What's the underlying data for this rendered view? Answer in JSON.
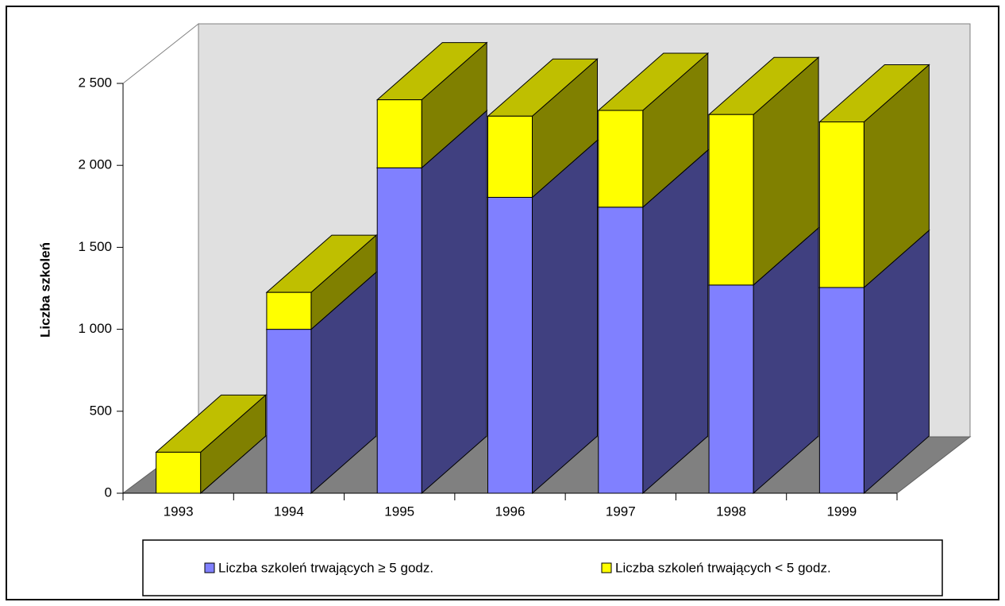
{
  "chart_data": {
    "type": "bar3d_stacked",
    "ylabel": "Liczba szkoleń",
    "categories": [
      "1993",
      "1994",
      "1995",
      "1996",
      "1997",
      "1998",
      "1999"
    ],
    "series": [
      {
        "name": "Liczba szkoleń trwających ≥ 5 godz.",
        "color": "#8080ff",
        "values": [
          0,
          1000,
          1985,
          1805,
          1745,
          1270,
          1255
        ]
      },
      {
        "name": "Liczba szkoleń trwających < 5 godz.",
        "color": "#ffff00",
        "values": [
          250,
          225,
          415,
          495,
          590,
          1040,
          1010
        ]
      }
    ],
    "ylim": [
      0,
      2500
    ],
    "yticks": [
      0,
      500,
      {
        "value": 1000,
        "label": "1 000"
      },
      {
        "value": 1500,
        "label": "1 500"
      },
      {
        "value": 2000,
        "label": "2 000"
      },
      {
        "value": 2500,
        "label": "2 500"
      }
    ],
    "legend": "bottom"
  }
}
